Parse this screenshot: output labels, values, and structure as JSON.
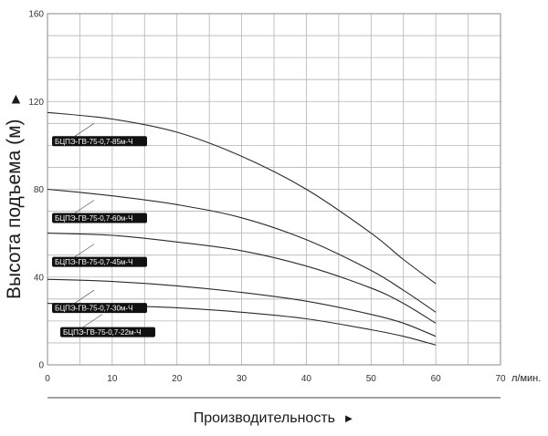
{
  "chart_data": {
    "type": "line",
    "title": "",
    "xlabel": "Производительность",
    "xlabel_arrow": "►",
    "x_unit": "л/мин.",
    "ylabel": "Высота подъема (м)",
    "ylabel_arrow": "►",
    "xlim": [
      0,
      70
    ],
    "ylim": [
      0,
      160
    ],
    "x_ticks": [
      0,
      10,
      20,
      30,
      40,
      50,
      60,
      70
    ],
    "y_ticks": [
      0,
      40,
      80,
      120,
      160
    ],
    "grid": true,
    "series": [
      {
        "name": "БЦПЭ-ГВ-75-0,7-85м-Ч",
        "x": [
          0,
          10,
          20,
          30,
          40,
          50,
          55,
          60
        ],
        "y": [
          115,
          112,
          106,
          95,
          80,
          60,
          48,
          37
        ]
      },
      {
        "name": "БЦПЭ-ГВ-75-0,7-60м-Ч",
        "x": [
          0,
          10,
          20,
          30,
          40,
          50,
          55,
          60
        ],
        "y": [
          80,
          77,
          73,
          67,
          57,
          43,
          34,
          24
        ]
      },
      {
        "name": "БЦПЭ-ГВ-75-0,7-45м-Ч",
        "x": [
          0,
          10,
          20,
          30,
          40,
          50,
          55,
          60
        ],
        "y": [
          60,
          59,
          56,
          52,
          45,
          35,
          28,
          19
        ]
      },
      {
        "name": "БЦПЭ-ГВ-75-0,7-30м-Ч",
        "x": [
          0,
          10,
          20,
          30,
          40,
          50,
          55,
          60
        ],
        "y": [
          39,
          38,
          36,
          33,
          29,
          23,
          19,
          13
        ]
      },
      {
        "name": "БЦПЭ-ГВ-75-0,7-22м-Ч",
        "x": [
          0,
          10,
          20,
          30,
          40,
          50,
          55,
          60
        ],
        "y": [
          28,
          27,
          26,
          24,
          21,
          16,
          13,
          9
        ]
      }
    ]
  }
}
